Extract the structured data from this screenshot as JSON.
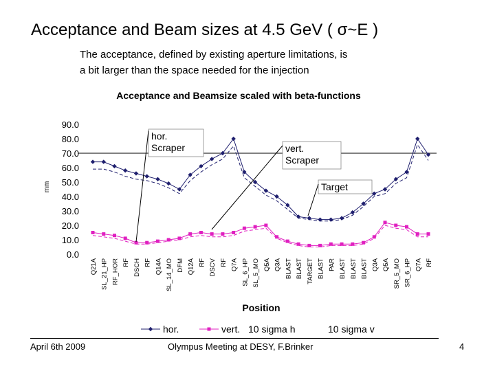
{
  "slide": {
    "title": "Acceptance and Beam sizes at 4.5 GeV ( σ~E )",
    "subtitle_line1": "The acceptance, defined by existing aperture limitations, is",
    "subtitle_line2": "a bit larger than the space needed for the injection"
  },
  "footer": {
    "date": "April 6th 2009",
    "event": "Olympus Meeting at DESY, F.Brinker",
    "page": "4"
  },
  "chart_data": {
    "type": "line",
    "title": "Acceptance and Beamsize scaled with beta-functions",
    "xlabel": "Position",
    "ylabel": "mm",
    "ylim": [
      0,
      90
    ],
    "yticks": [
      "90.0",
      "80.0",
      "70.0",
      "60.0",
      "50.0",
      "40.0",
      "30.0",
      "20.0",
      "10.0",
      "0.0"
    ],
    "grid": false,
    "legend_position": "bottom",
    "categories": [
      "Q21A",
      "SL_21_HP",
      "RF_HOR",
      "RF",
      "DSCH",
      "RF",
      "Q14A",
      "SL_14_MO",
      "DFM",
      "Q12A",
      "RF",
      "DSCV",
      "RF",
      "Q7A",
      "SL_6_HP",
      "SL_5_MO",
      "Q5A",
      "Q3A",
      "BLAST",
      "BLAST",
      "TARGET",
      "BLAST",
      "PAR",
      "BLAST",
      "BLAST",
      "BLAST",
      "Q3A",
      "Q5A",
      "SR_5_MO",
      "SR_6_HP",
      "Q7A",
      "RF"
    ],
    "series": [
      {
        "name": "hor.",
        "color": "#1f1f6e",
        "marker": "diamond",
        "values": [
          64,
          64,
          61,
          58,
          56,
          54,
          52,
          49,
          45,
          55,
          61,
          66,
          70,
          80,
          57,
          50,
          44,
          40,
          34,
          26,
          25,
          24,
          24,
          25,
          29,
          35,
          42,
          45,
          52,
          57,
          80,
          69
        ]
      },
      {
        "name": "vert.",
        "color": "#e020c0",
        "marker": "square",
        "values": [
          15,
          14,
          13,
          11,
          8,
          8,
          9,
          10,
          11,
          14,
          15,
          14,
          14,
          15,
          18,
          19,
          20,
          12,
          9,
          7,
          6,
          6,
          7,
          7,
          7,
          8,
          12,
          22,
          20,
          19,
          14,
          14
        ]
      },
      {
        "name": "10 sigma h",
        "color": "#1f1f6e",
        "dash": "dashed",
        "values": [
          59,
          59,
          57,
          54,
          52,
          51,
          49,
          46,
          42,
          51,
          57,
          62,
          66,
          75,
          53,
          47,
          41,
          37,
          31,
          25,
          24,
          23,
          23,
          24,
          27,
          33,
          40,
          42,
          49,
          53,
          76,
          65
        ]
      },
      {
        "name": "10 sigma v",
        "color": "#e020c0",
        "dash": "dashed",
        "values": [
          13,
          12,
          11,
          9,
          7,
          7,
          8,
          9,
          10,
          12,
          13,
          12,
          12,
          13,
          16,
          17,
          18,
          11,
          8,
          6,
          5,
          5,
          6,
          6,
          6,
          7,
          11,
          20,
          18,
          17,
          12,
          12
        ]
      }
    ],
    "annotations": [
      {
        "lines": [
          "hor.",
          "Scraper"
        ]
      },
      {
        "lines": [
          "vert.",
          "Scraper"
        ]
      },
      {
        "lines": [
          "Target"
        ]
      }
    ],
    "reference_line": 70
  }
}
